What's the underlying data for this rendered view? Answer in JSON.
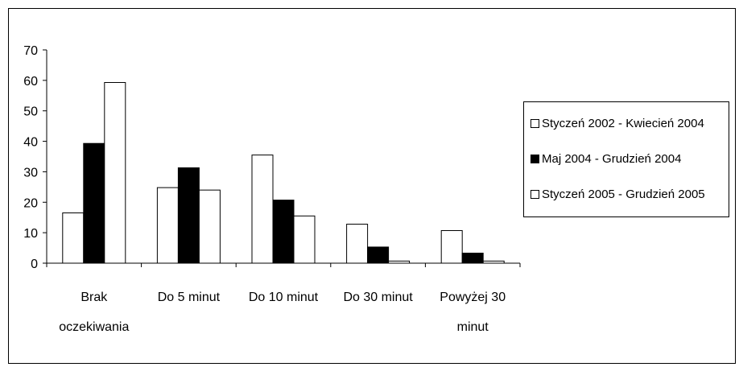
{
  "chart_data": {
    "type": "bar",
    "categories": [
      [
        "Brak",
        "oczekiwania"
      ],
      [
        "Do 5 minut"
      ],
      [
        "Do 10 minut"
      ],
      [
        "Do 30 minut"
      ],
      [
        "Powyżej 30",
        "minut"
      ]
    ],
    "series": [
      {
        "name": "Styczeń 2002 - Kwiecień 2004",
        "color": "#ffffff",
        "values": [
          16.5,
          24.8,
          35.5,
          12.8,
          10.7
        ]
      },
      {
        "name": "Maj 2004 - Grudzień 2004",
        "color": "#000000",
        "values": [
          39.3,
          31.3,
          20.7,
          5.3,
          3.3
        ]
      },
      {
        "name": "Styczeń 2005 - Grudzień 2005",
        "color": "#ffffff",
        "values": [
          59.3,
          24.0,
          15.5,
          0.7,
          0.7
        ]
      }
    ],
    "ylim": [
      0,
      70
    ],
    "yticks": [
      0,
      10,
      20,
      30,
      40,
      50,
      60,
      70
    ],
    "grid": false,
    "legend_position": "right"
  }
}
